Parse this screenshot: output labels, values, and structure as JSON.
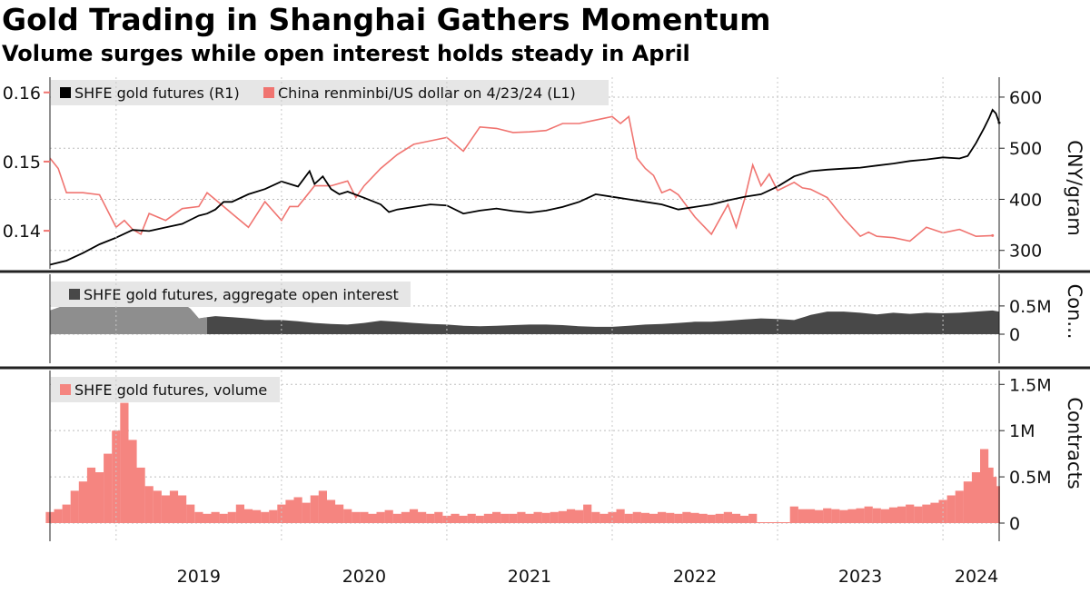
{
  "title": "Gold Trading in Shanghai Gathers Momentum",
  "subtitle": "Volume surges while open interest holds steady in April",
  "colors": {
    "gold": "#000000",
    "cny": "#f07470",
    "oi_fill": "#484848",
    "oi_early": "#9b9b9b",
    "volume": "#f58580",
    "legend_bg": "#e6e6e6"
  },
  "chart_data": [
    {
      "type": "line",
      "legend": [
        "SHFE gold futures (R1)",
        "China renminbi/US dollar on 4/23/24 (L1)"
      ],
      "ylabel_right": "CNY/gram",
      "yticks_left": [
        "0.14",
        "0.15",
        "0.16"
      ],
      "yticks_right": [
        "300",
        "400",
        "500",
        "600"
      ],
      "ylim_left": [
        0.1345,
        0.1622
      ],
      "ylim_right": [
        264,
        639
      ],
      "x_labels": [
        "2019",
        "2020",
        "2021",
        "2022",
        "2023",
        "2024"
      ],
      "x_domain": [
        2018.6,
        2024.34
      ],
      "series": [
        {
          "name": "SHFE gold futures (R1)",
          "axis": "right",
          "x": [
            2018.6,
            2018.7,
            2018.8,
            2018.9,
            2019.0,
            2019.1,
            2019.2,
            2019.3,
            2019.4,
            2019.45,
            2019.5,
            2019.55,
            2019.6,
            2019.65,
            2019.7,
            2019.8,
            2019.9,
            2020.0,
            2020.1,
            2020.17,
            2020.2,
            2020.25,
            2020.3,
            2020.35,
            2020.4,
            2020.5,
            2020.6,
            2020.65,
            2020.7,
            2020.8,
            2020.9,
            2021.0,
            2021.1,
            2021.2,
            2021.3,
            2021.4,
            2021.5,
            2021.6,
            2021.7,
            2021.8,
            2021.9,
            2022.0,
            2022.1,
            2022.2,
            2022.3,
            2022.4,
            2022.5,
            2022.6,
            2022.7,
            2022.8,
            2022.9,
            2023.0,
            2023.1,
            2023.2,
            2023.3,
            2023.4,
            2023.5,
            2023.6,
            2023.7,
            2023.8,
            2023.9,
            2024.0,
            2024.1,
            2024.15,
            2024.2,
            2024.25,
            2024.28,
            2024.3,
            2024.32,
            2024.34
          ],
          "values": [
            272,
            280,
            295,
            312,
            325,
            340,
            338,
            345,
            352,
            360,
            368,
            372,
            380,
            395,
            395,
            410,
            420,
            435,
            425,
            455,
            430,
            445,
            420,
            410,
            415,
            403,
            390,
            375,
            380,
            385,
            390,
            388,
            372,
            378,
            382,
            377,
            374,
            378,
            385,
            395,
            410,
            405,
            400,
            395,
            390,
            380,
            385,
            390,
            398,
            405,
            410,
            425,
            445,
            455,
            458,
            460,
            462,
            466,
            470,
            475,
            478,
            482,
            480,
            485,
            510,
            540,
            560,
            575,
            568,
            550
          ]
        },
        {
          "name": "China renminbi/US dollar on 4/23/24 (L1)",
          "axis": "left",
          "x": [
            2018.6,
            2018.65,
            2018.7,
            2018.8,
            2018.9,
            2019.0,
            2019.05,
            2019.1,
            2019.15,
            2019.2,
            2019.3,
            2019.4,
            2019.5,
            2019.55,
            2019.6,
            2019.7,
            2019.8,
            2019.9,
            2020.0,
            2020.05,
            2020.1,
            2020.2,
            2020.3,
            2020.4,
            2020.45,
            2020.5,
            2020.6,
            2020.7,
            2020.8,
            2020.9,
            2021.0,
            2021.1,
            2021.2,
            2021.3,
            2021.4,
            2021.5,
            2021.6,
            2021.7,
            2021.8,
            2021.9,
            2022.0,
            2022.05,
            2022.1,
            2022.15,
            2022.2,
            2022.25,
            2022.3,
            2022.35,
            2022.4,
            2022.5,
            2022.6,
            2022.7,
            2022.75,
            2022.8,
            2022.85,
            2022.9,
            2022.95,
            2023.0,
            2023.1,
            2023.15,
            2023.2,
            2023.3,
            2023.4,
            2023.5,
            2023.55,
            2023.6,
            2023.7,
            2023.8,
            2023.9,
            2024.0,
            2024.1,
            2024.2,
            2024.3
          ],
          "values": [
            0.1505,
            0.149,
            0.1455,
            0.1455,
            0.1452,
            0.1405,
            0.1415,
            0.1402,
            0.1395,
            0.1425,
            0.1415,
            0.1432,
            0.1435,
            0.1455,
            0.1445,
            0.1425,
            0.1405,
            0.1442,
            0.1415,
            0.1435,
            0.1435,
            0.1465,
            0.1465,
            0.1472,
            0.1448,
            0.1465,
            0.149,
            0.151,
            0.1525,
            0.153,
            0.1535,
            0.1515,
            0.155,
            0.1548,
            0.1542,
            0.1543,
            0.1545,
            0.1555,
            0.1555,
            0.156,
            0.1565,
            0.1555,
            0.1565,
            0.1505,
            0.149,
            0.148,
            0.1455,
            0.146,
            0.1452,
            0.142,
            0.1395,
            0.1438,
            0.1405,
            0.1445,
            0.1495,
            0.1465,
            0.1482,
            0.1458,
            0.147,
            0.1462,
            0.146,
            0.1448,
            0.1418,
            0.1392,
            0.1398,
            0.1392,
            0.139,
            0.1385,
            0.1405,
            0.1397,
            0.1402,
            0.1392,
            0.1393
          ]
        }
      ]
    },
    {
      "type": "area",
      "legend": [
        "SHFE gold futures, aggregate open interest"
      ],
      "ylabel_right": "Con...",
      "yticks_right": [
        "0",
        "0.5M"
      ],
      "ylim": [
        0,
        0.9
      ],
      "x_domain": [
        2018.6,
        2024.34
      ],
      "series": [
        {
          "name": "SHFE gold futures, aggregate open interest",
          "x": [
            2018.6,
            2018.7,
            2018.8,
            2018.9,
            2019.0,
            2019.1,
            2019.2,
            2019.3,
            2019.4,
            2019.45,
            2019.5,
            2019.55,
            2019.6,
            2019.7,
            2019.8,
            2019.9,
            2020.0,
            2020.1,
            2020.2,
            2020.3,
            2020.4,
            2020.5,
            2020.6,
            2020.7,
            2020.8,
            2020.9,
            2021.0,
            2021.1,
            2021.2,
            2021.3,
            2021.4,
            2021.5,
            2021.6,
            2021.7,
            2021.8,
            2021.9,
            2022.0,
            2022.1,
            2022.2,
            2022.3,
            2022.4,
            2022.5,
            2022.6,
            2022.7,
            2022.8,
            2022.9,
            2023.0,
            2023.1,
            2023.2,
            2023.3,
            2023.4,
            2023.5,
            2023.6,
            2023.7,
            2023.8,
            2023.9,
            2024.0,
            2024.1,
            2024.2,
            2024.3,
            2024.34
          ],
          "values": [
            0.42,
            0.52,
            0.62,
            0.68,
            0.7,
            0.72,
            0.7,
            0.62,
            0.55,
            0.45,
            0.28,
            0.3,
            0.32,
            0.3,
            0.28,
            0.25,
            0.25,
            0.23,
            0.2,
            0.18,
            0.17,
            0.2,
            0.24,
            0.22,
            0.2,
            0.18,
            0.17,
            0.15,
            0.14,
            0.15,
            0.16,
            0.17,
            0.17,
            0.16,
            0.14,
            0.13,
            0.13,
            0.15,
            0.17,
            0.18,
            0.2,
            0.22,
            0.22,
            0.24,
            0.26,
            0.28,
            0.27,
            0.25,
            0.34,
            0.4,
            0.4,
            0.38,
            0.35,
            0.38,
            0.36,
            0.38,
            0.37,
            0.38,
            0.4,
            0.42,
            0.4
          ]
        }
      ]
    },
    {
      "type": "bar",
      "legend": [
        "SHFE gold futures, volume"
      ],
      "ylabel_right": "Contracts",
      "yticks_right": [
        "0",
        "0.5M",
        "1M",
        "1.5M"
      ],
      "ylim": [
        0,
        1.65
      ],
      "x_domain": [
        2018.6,
        2024.34
      ],
      "series": [
        {
          "name": "SHFE gold futures, volume",
          "x": [
            2018.6,
            2018.65,
            2018.7,
            2018.75,
            2018.8,
            2018.85,
            2018.9,
            2018.95,
            2019.0,
            2019.05,
            2019.1,
            2019.15,
            2019.2,
            2019.25,
            2019.3,
            2019.35,
            2019.4,
            2019.45,
            2019.5,
            2019.55,
            2019.6,
            2019.65,
            2019.7,
            2019.75,
            2019.8,
            2019.85,
            2019.9,
            2019.95,
            2020.0,
            2020.05,
            2020.1,
            2020.15,
            2020.2,
            2020.25,
            2020.3,
            2020.35,
            2020.4,
            2020.45,
            2020.5,
            2020.55,
            2020.6,
            2020.65,
            2020.7,
            2020.75,
            2020.8,
            2020.85,
            2020.9,
            2020.95,
            2021.0,
            2021.05,
            2021.1,
            2021.15,
            2021.2,
            2021.25,
            2021.3,
            2021.35,
            2021.4,
            2021.45,
            2021.5,
            2021.55,
            2021.6,
            2021.65,
            2021.7,
            2021.75,
            2021.8,
            2021.85,
            2021.9,
            2021.95,
            2022.0,
            2022.05,
            2022.1,
            2022.15,
            2022.2,
            2022.25,
            2022.3,
            2022.35,
            2022.4,
            2022.45,
            2022.5,
            2022.55,
            2022.6,
            2022.65,
            2022.7,
            2022.75,
            2022.8,
            2022.85,
            2022.9,
            2022.95,
            2023.0,
            2023.05,
            2023.1,
            2023.15,
            2023.2,
            2023.25,
            2023.3,
            2023.35,
            2023.4,
            2023.45,
            2023.5,
            2023.55,
            2023.6,
            2023.65,
            2023.7,
            2023.75,
            2023.8,
            2023.85,
            2023.9,
            2023.95,
            2024.0,
            2024.05,
            2024.1,
            2024.15,
            2024.2,
            2024.25,
            2024.28,
            2024.3,
            2024.32
          ],
          "values": [
            0.12,
            0.15,
            0.2,
            0.35,
            0.45,
            0.6,
            0.55,
            0.75,
            1.0,
            1.3,
            0.9,
            0.6,
            0.4,
            0.35,
            0.3,
            0.35,
            0.3,
            0.2,
            0.12,
            0.1,
            0.12,
            0.1,
            0.12,
            0.2,
            0.15,
            0.14,
            0.12,
            0.14,
            0.2,
            0.25,
            0.28,
            0.22,
            0.3,
            0.35,
            0.25,
            0.2,
            0.15,
            0.12,
            0.12,
            0.1,
            0.12,
            0.14,
            0.1,
            0.12,
            0.15,
            0.12,
            0.1,
            0.12,
            0.08,
            0.1,
            0.08,
            0.1,
            0.08,
            0.1,
            0.12,
            0.1,
            0.1,
            0.12,
            0.1,
            0.12,
            0.11,
            0.12,
            0.13,
            0.15,
            0.14,
            0.2,
            0.12,
            0.1,
            0.12,
            0.15,
            0.1,
            0.12,
            0.11,
            0.1,
            0.12,
            0.11,
            0.1,
            0.12,
            0.11,
            0.1,
            0.09,
            0.1,
            0.12,
            0.1,
            0.08,
            0.1,
            0.01,
            0.01,
            0.01,
            0.01,
            0.18,
            0.15,
            0.15,
            0.14,
            0.16,
            0.15,
            0.14,
            0.15,
            0.16,
            0.18,
            0.16,
            0.15,
            0.17,
            0.18,
            0.2,
            0.18,
            0.2,
            0.22,
            0.25,
            0.3,
            0.35,
            0.45,
            0.55,
            0.8,
            0.6,
            0.5,
            0.4
          ]
        }
      ]
    }
  ]
}
